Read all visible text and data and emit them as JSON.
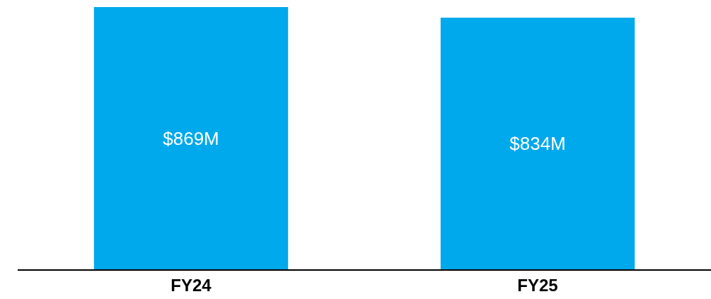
{
  "chart_data": {
    "type": "bar",
    "categories": [
      "FY24",
      "FY25"
    ],
    "values": [
      869,
      834
    ],
    "color": "#00a9eb",
    "value_labels": [
      "$869M",
      "$834M"
    ],
    "ylim": [
      0,
      869
    ],
    "tick_labels": "x"
  }
}
